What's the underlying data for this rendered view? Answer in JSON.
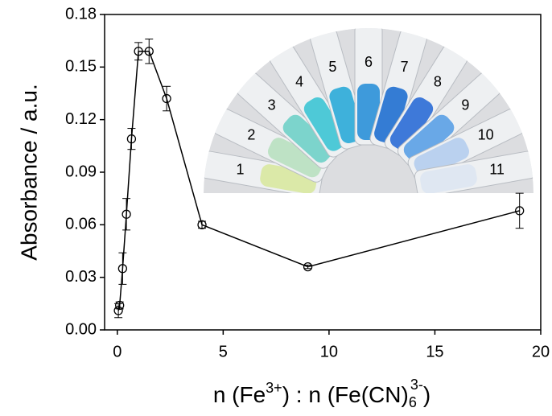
{
  "chart_data": {
    "type": "line",
    "y_label": "Absorbance / a.u.",
    "x_label": [
      "n (Fe",
      "3+",
      ") : n (Fe(CN)",
      "6",
      "3-",
      ")"
    ],
    "x": [
      0.05,
      0.11,
      0.25,
      0.43,
      0.67,
      1,
      1.5,
      2.33,
      4,
      9,
      19
    ],
    "series": [
      {
        "color": "#000000",
        "values": [
          0.011,
          0.014,
          0.035,
          0.066,
          0.109,
          0.159,
          0.159,
          0.132,
          0.06,
          0.036,
          0.068
        ],
        "errors": [
          0.004,
          0.002,
          0.009,
          0.009,
          0.006,
          0.005,
          0.007,
          0.007,
          0.002,
          0.001,
          0.01
        ]
      }
    ],
    "xlim": [
      -0.6,
      20
    ],
    "xticks": [
      0,
      5,
      10,
      15,
      20
    ],
    "ylim": [
      0,
      0.18
    ],
    "yticks": [
      {
        "value": 0,
        "label": "0.00"
      },
      0.03,
      0.06,
      0.09,
      0.12,
      0.15,
      0.18
    ],
    "inset_labels": [
      "1",
      "2",
      "3",
      "4",
      "5",
      "6",
      "7",
      "8",
      "9",
      "10",
      "11"
    ]
  }
}
